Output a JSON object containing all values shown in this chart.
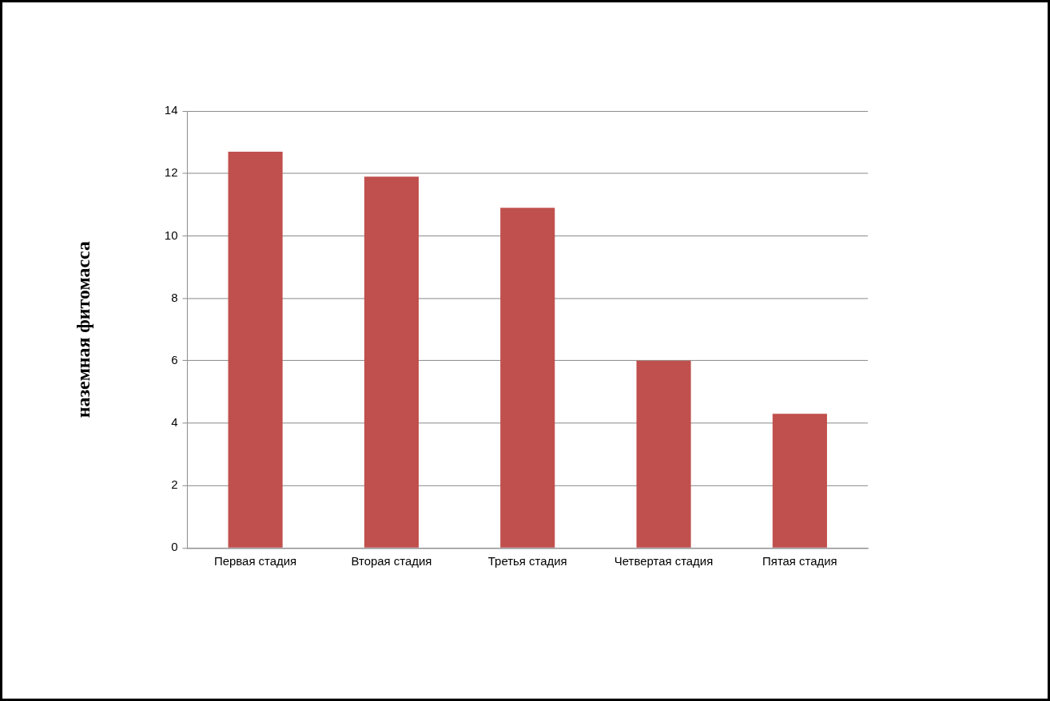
{
  "chart_data": {
    "type": "bar",
    "ylabel": "наземная фитомасса",
    "categories": [
      "Первая стадия",
      "Вторая стадия",
      "Третья стадия",
      "Четвертая стадия",
      "Пятая стадия"
    ],
    "values": [
      12.7,
      11.9,
      10.9,
      6.0,
      4.3
    ],
    "color": "#c0504d",
    "ylim": [
      0,
      14
    ],
    "yticks": [
      0,
      2,
      4,
      6,
      8,
      10,
      12,
      14
    ],
    "grid": "y",
    "legend": false
  }
}
